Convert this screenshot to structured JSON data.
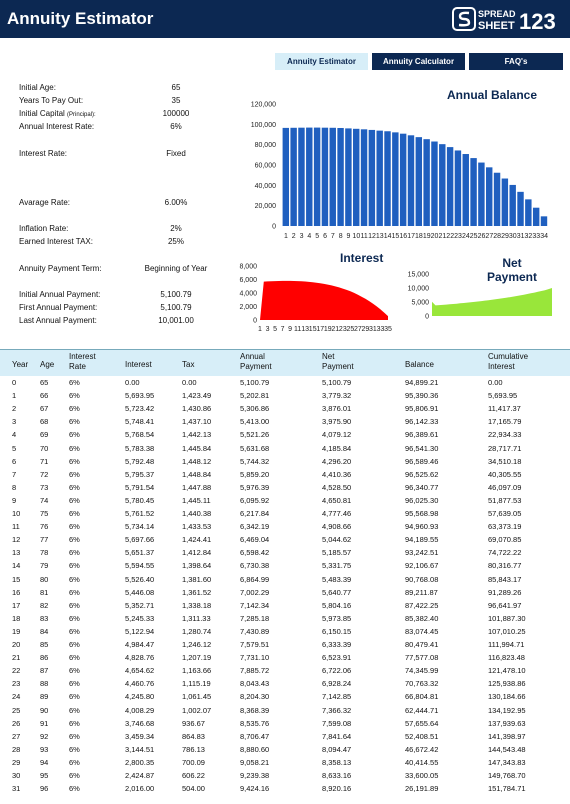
{
  "header": {
    "title": "Annuity Estimator",
    "logo_text_top": "SPREAD",
    "logo_text_bottom": "SHEET",
    "logo_number": "123"
  },
  "tabs": [
    {
      "label": "Annuity Estimator",
      "active": true
    },
    {
      "label": "Annuity Calculator",
      "active": false
    },
    {
      "label": "FAQ's",
      "active": false
    }
  ],
  "params": {
    "initial_age": {
      "label": "Initial Age:",
      "value": "65"
    },
    "years_to_pay": {
      "label": "Years To Pay Out:",
      "value": "35"
    },
    "initial_capital": {
      "label": "Initial Capital",
      "label_small": "(Principal):",
      "value": "100000"
    },
    "annual_rate": {
      "label": "Annual Interest Rate:",
      "value": "6%"
    },
    "interest_rate": {
      "label": "Interest Rate:",
      "value": "Fixed"
    },
    "average_rate": {
      "label": "Avarage Rate:",
      "value": "6.00%"
    },
    "inflation_rate": {
      "label": "Inflation Rate:",
      "value": "2%"
    },
    "earned_tax": {
      "label": "Earned Interest TAX:",
      "value": "25%"
    },
    "payment_term": {
      "label": "Annuity Payment Term:",
      "value": "Beginning of Year"
    },
    "initial_payment": {
      "label": "Initial Annual Payment:",
      "value": "5,100.79"
    },
    "first_payment": {
      "label": "First Annual Payment:",
      "value": "5,100.79"
    },
    "last_payment": {
      "label": "Last Annual Payment:",
      "value": "10,001.00"
    }
  },
  "chart_data": [
    {
      "type": "bar",
      "title": "Annual Balance",
      "color": "#1f5fbf",
      "ylim": [
        0,
        120000
      ],
      "yticks": [
        "0",
        "20,000",
        "40,000",
        "60,000",
        "80,000",
        "100,000",
        "120,000"
      ],
      "categories": [
        "1",
        "2",
        "3",
        "4",
        "5",
        "6",
        "7",
        "8",
        "9",
        "10",
        "11",
        "12",
        "13",
        "14",
        "15",
        "16",
        "17",
        "18",
        "19",
        "20",
        "21",
        "22",
        "23",
        "24",
        "25",
        "26",
        "27",
        "28",
        "29",
        "30",
        "31",
        "32",
        "33",
        "34"
      ],
      "values": [
        96500,
        96600,
        96700,
        96800,
        96800,
        96700,
        96600,
        96400,
        96000,
        95600,
        95100,
        94500,
        93800,
        93200,
        92100,
        90800,
        89200,
        87400,
        85400,
        83100,
        80500,
        77600,
        74300,
        70800,
        66800,
        62400,
        57700,
        52400,
        46700,
        40400,
        33600,
        26200,
        18000,
        9500
      ],
      "grid": false
    },
    {
      "type": "area",
      "title": "Interest",
      "color": "#ff0000",
      "ylim": [
        0,
        8000
      ],
      "yticks": [
        "0",
        "2,000",
        "4,000",
        "6,000",
        "8,000"
      ],
      "xticks": [
        "1",
        "3",
        "5",
        "7",
        "9",
        "11",
        "13",
        "15",
        "17",
        "19",
        "21",
        "23",
        "25",
        "27",
        "29",
        "31",
        "33",
        "35"
      ],
      "values": [
        0,
        5694,
        5723,
        5748,
        5769,
        5783,
        5792,
        5795,
        5792,
        5780,
        5762,
        5734,
        5698,
        5651,
        5595,
        5526,
        5446,
        5353,
        5245,
        5123,
        4984,
        4829,
        4655,
        4461,
        4246,
        4008,
        3747,
        3459,
        3145,
        2800,
        2425,
        2016,
        1575,
        1100,
        580
      ]
    },
    {
      "type": "area",
      "title": "Net Payment",
      "color": "#99e63a",
      "ylim": [
        0,
        15000
      ],
      "yticks": [
        "0",
        "5,000",
        "10,000",
        "15,000"
      ],
      "values": [
        5101,
        3779,
        3876,
        3976,
        4079,
        4186,
        4296,
        4410,
        4529,
        4651,
        4777,
        4909,
        5045,
        5186,
        5332,
        5483,
        5641,
        5804,
        5974,
        6150,
        6333,
        6524,
        6722,
        6928,
        7143,
        7366,
        7599,
        7842,
        8094,
        8358,
        8633,
        8920,
        9220,
        9600,
        10001
      ]
    }
  ],
  "table": {
    "headers": [
      "Year",
      "Age",
      "Interest Rate",
      "Interest",
      "Tax",
      "Annual Payment",
      "Net Payment",
      "Balance",
      "Cumulative Interest"
    ],
    "rows": [
      [
        "0",
        "65",
        "6%",
        "0.00",
        "0.00",
        "5,100.79",
        "5,100.79",
        "94,899.21",
        "0.00"
      ],
      [
        "1",
        "66",
        "6%",
        "5,693.95",
        "1,423.49",
        "5,202.81",
        "3,779.32",
        "95,390.36",
        "5,693.95"
      ],
      [
        "2",
        "67",
        "6%",
        "5,723.42",
        "1,430.86",
        "5,306.86",
        "3,876.01",
        "95,806.91",
        "11,417.37"
      ],
      [
        "3",
        "68",
        "6%",
        "5,748.41",
        "1,437.10",
        "5,413.00",
        "3,975.90",
        "96,142.33",
        "17,165.79"
      ],
      [
        "4",
        "69",
        "6%",
        "5,768.54",
        "1,442.13",
        "5,521.26",
        "4,079.12",
        "96,389.61",
        "22,934.33"
      ],
      [
        "5",
        "70",
        "6%",
        "5,783.38",
        "1,445.84",
        "5,631.68",
        "4,185.84",
        "96,541.30",
        "28,717.71"
      ],
      [
        "6",
        "71",
        "6%",
        "5,792.48",
        "1,448.12",
        "5,744.32",
        "4,296.20",
        "96,589.46",
        "34,510.18"
      ],
      [
        "7",
        "72",
        "6%",
        "5,795.37",
        "1,448.84",
        "5,859.20",
        "4,410.36",
        "96,525.62",
        "40,305.55"
      ],
      [
        "8",
        "73",
        "6%",
        "5,791.54",
        "1,447.88",
        "5,976.39",
        "4,528.50",
        "96,340.77",
        "46,097.09"
      ],
      [
        "9",
        "74",
        "6%",
        "5,780.45",
        "1,445.11",
        "6,095.92",
        "4,650.81",
        "96,025.30",
        "51,877.53"
      ],
      [
        "10",
        "75",
        "6%",
        "5,761.52",
        "1,440.38",
        "6,217.84",
        "4,777.46",
        "95,568.98",
        "57,639.05"
      ],
      [
        "11",
        "76",
        "6%",
        "5,734.14",
        "1,433.53",
        "6,342.19",
        "4,908.66",
        "94,960.93",
        "63,373.19"
      ],
      [
        "12",
        "77",
        "6%",
        "5,697.66",
        "1,424.41",
        "6,469.04",
        "5,044.62",
        "94,189.55",
        "69,070.85"
      ],
      [
        "13",
        "78",
        "6%",
        "5,651.37",
        "1,412.84",
        "6,598.42",
        "5,185.57",
        "93,242.51",
        "74,722.22"
      ],
      [
        "14",
        "79",
        "6%",
        "5,594.55",
        "1,398.64",
        "6,730.38",
        "5,331.75",
        "92,106.67",
        "80,316.77"
      ],
      [
        "15",
        "80",
        "6%",
        "5,526.40",
        "1,381.60",
        "6,864.99",
        "5,483.39",
        "90,768.08",
        "85,843.17"
      ],
      [
        "16",
        "81",
        "6%",
        "5,446.08",
        "1,361.52",
        "7,002.29",
        "5,640.77",
        "89,211.87",
        "91,289.26"
      ],
      [
        "17",
        "82",
        "6%",
        "5,352.71",
        "1,338.18",
        "7,142.34",
        "5,804.16",
        "87,422.25",
        "96,641.97"
      ],
      [
        "18",
        "83",
        "6%",
        "5,245.33",
        "1,311.33",
        "7,285.18",
        "5,973.85",
        "85,382.40",
        "101,887.30"
      ],
      [
        "19",
        "84",
        "6%",
        "5,122.94",
        "1,280.74",
        "7,430.89",
        "6,150.15",
        "83,074.45",
        "107,010.25"
      ],
      [
        "20",
        "85",
        "6%",
        "4,984.47",
        "1,246.12",
        "7,579.51",
        "6,333.39",
        "80,479.41",
        "111,994.71"
      ],
      [
        "21",
        "86",
        "6%",
        "4,828.76",
        "1,207.19",
        "7,731.10",
        "6,523.91",
        "77,577.08",
        "116,823.48"
      ],
      [
        "22",
        "87",
        "6%",
        "4,654.62",
        "1,163.66",
        "7,885.72",
        "6,722.06",
        "74,345.99",
        "121,478.10"
      ],
      [
        "23",
        "88",
        "6%",
        "4,460.76",
        "1,115.19",
        "8,043.43",
        "6,928.24",
        "70,763.32",
        "125,938.86"
      ],
      [
        "24",
        "89",
        "6%",
        "4,245.80",
        "1,061.45",
        "8,204.30",
        "7,142.85",
        "66,804.81",
        "130,184.66"
      ],
      [
        "25",
        "90",
        "6%",
        "4,008.29",
        "1,002.07",
        "8,368.39",
        "7,366.32",
        "62,444.71",
        "134,192.95"
      ],
      [
        "26",
        "91",
        "6%",
        "3,746.68",
        "936.67",
        "8,535.76",
        "7,599.08",
        "57,655.64",
        "137,939.63"
      ],
      [
        "27",
        "92",
        "6%",
        "3,459.34",
        "864.83",
        "8,706.47",
        "7,841.64",
        "52,408.51",
        "141,398.97"
      ],
      [
        "28",
        "93",
        "6%",
        "3,144.51",
        "786.13",
        "8,880.60",
        "8,094.47",
        "46,672.42",
        "144,543.48"
      ],
      [
        "29",
        "94",
        "6%",
        "2,800.35",
        "700.09",
        "9,058.21",
        "8,358.13",
        "40,414.55",
        "147,343.83"
      ],
      [
        "30",
        "95",
        "6%",
        "2,424.87",
        "606.22",
        "9,239.38",
        "8,633.16",
        "33,600.05",
        "149,768.70"
      ],
      [
        "31",
        "96",
        "6%",
        "2,016.00",
        "504.00",
        "9,424.16",
        "8,920.16",
        "26,191.89",
        "151,784.71"
      ]
    ]
  }
}
